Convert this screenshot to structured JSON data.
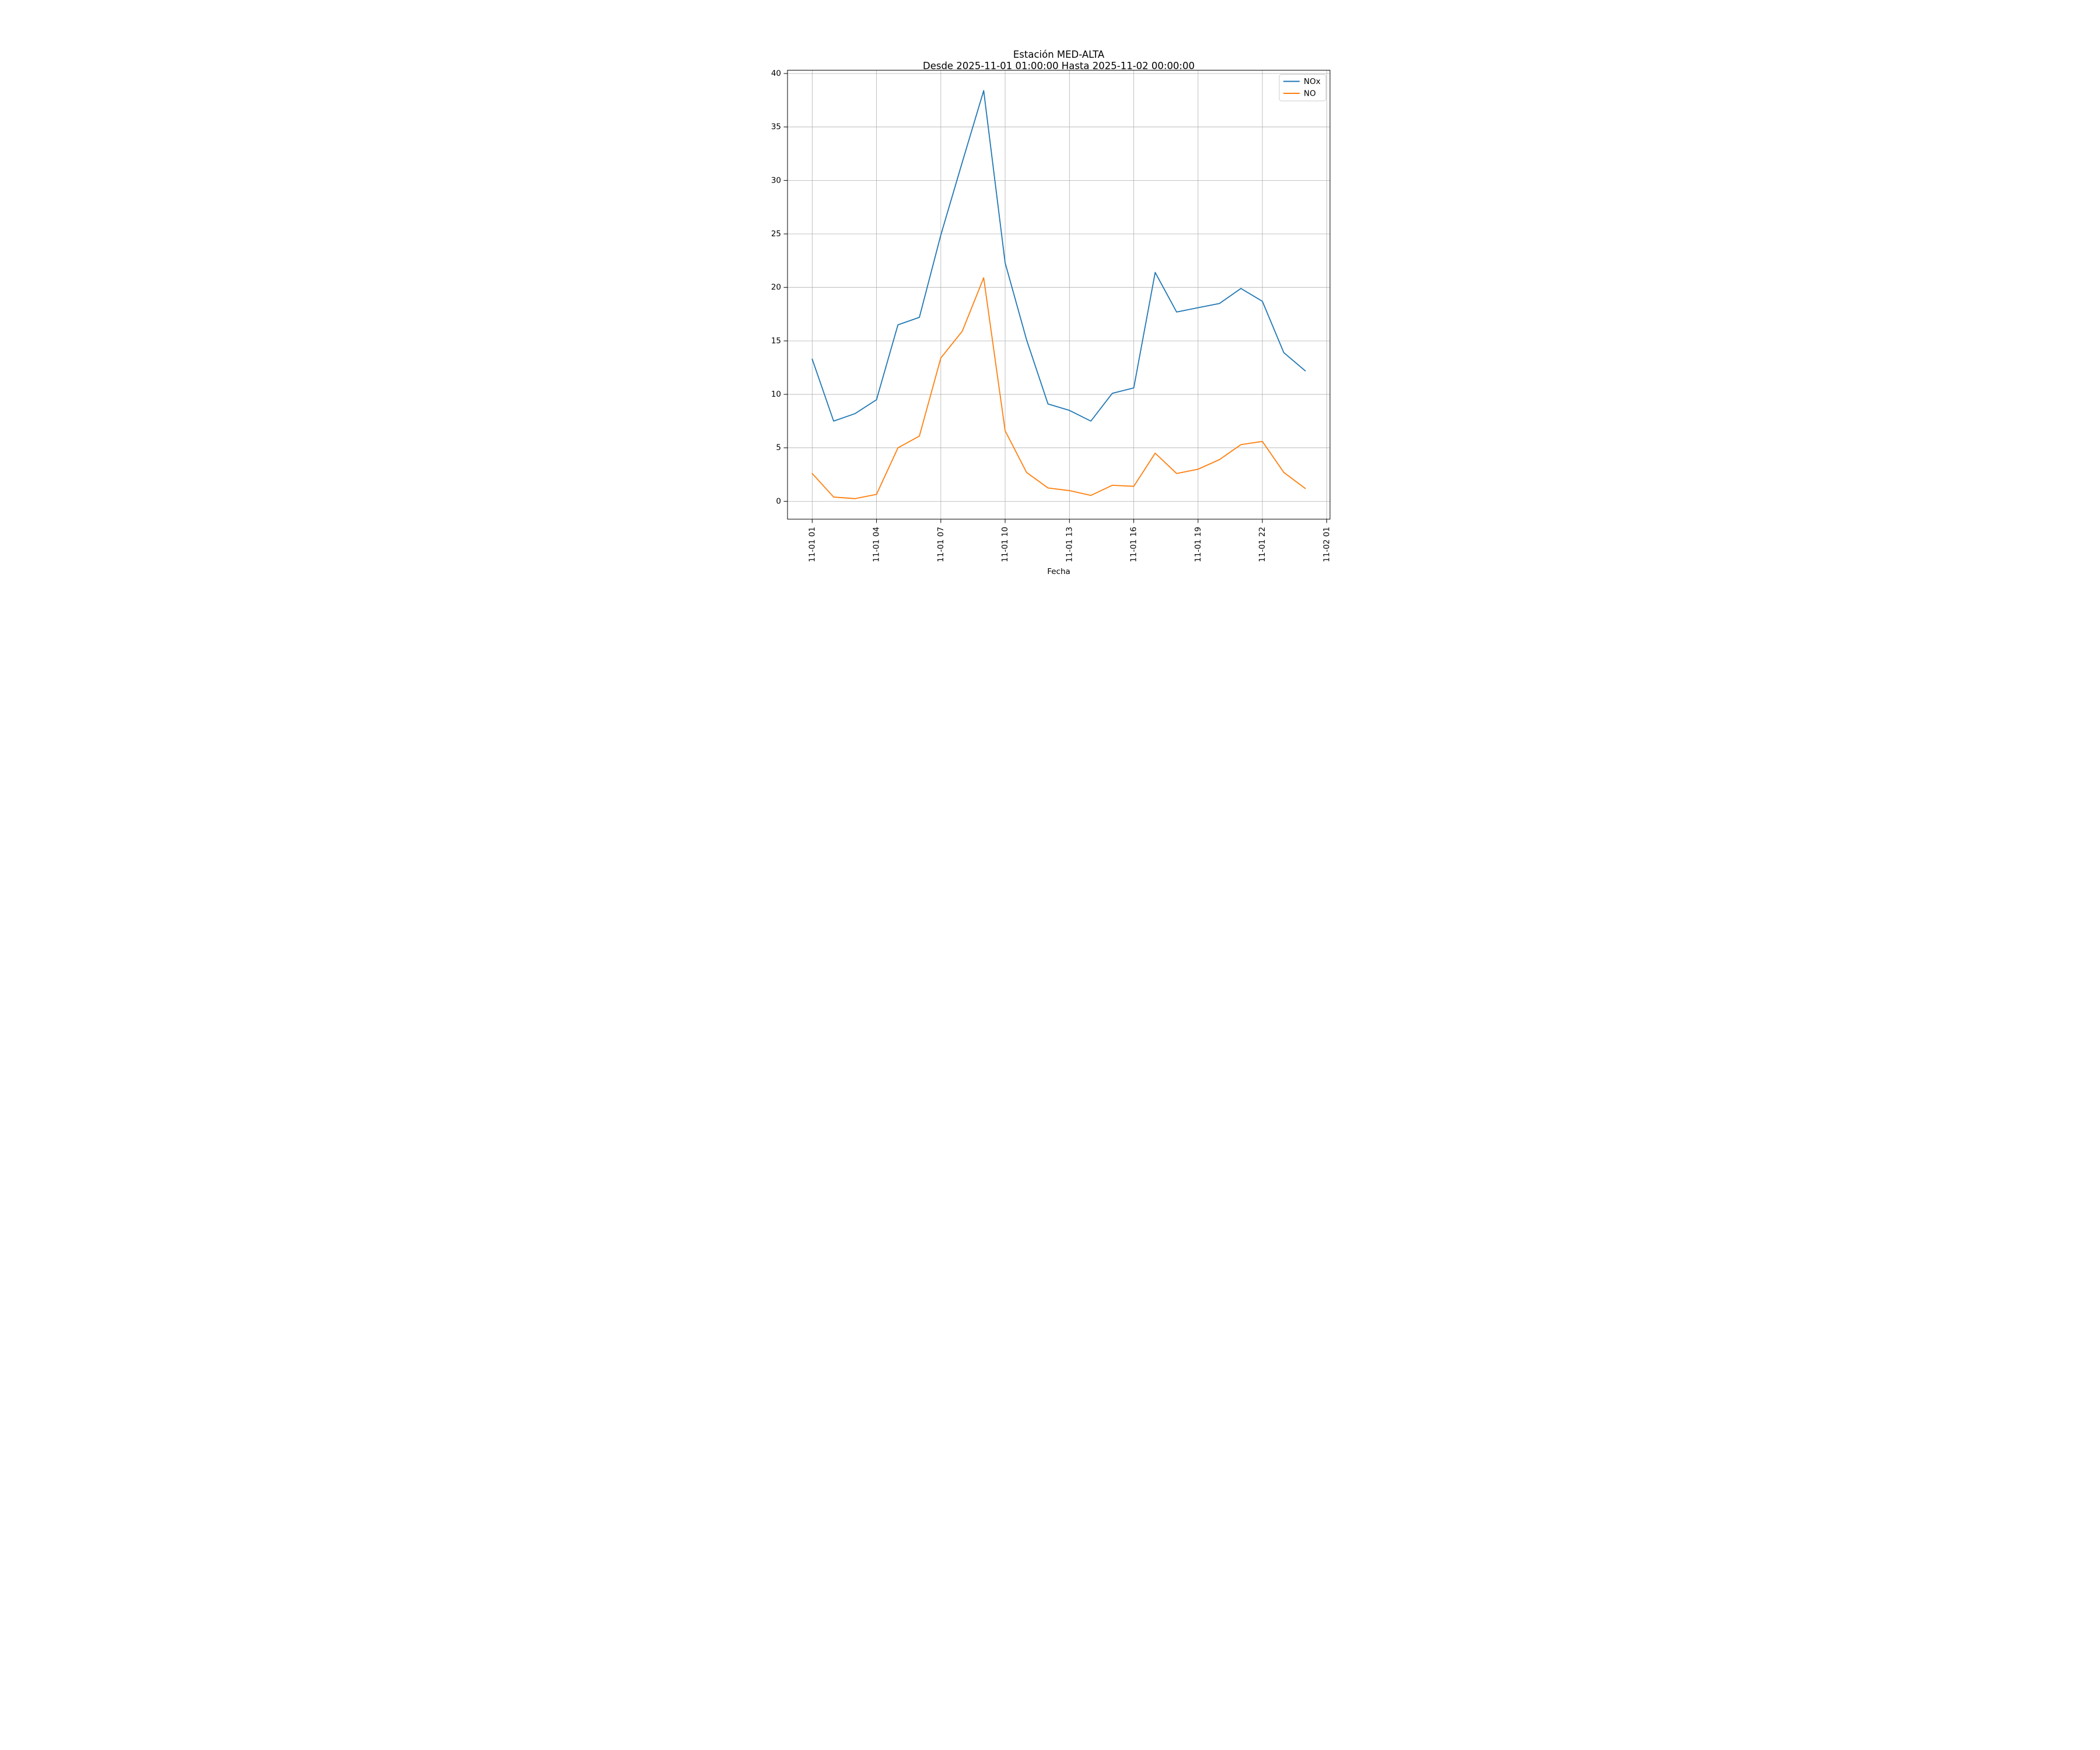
{
  "figure": {
    "background": "#ffffff",
    "grid_color": "#b0b0b0",
    "spine_color": "#000000",
    "text_color": "#000000"
  },
  "chart_data": {
    "type": "line",
    "title": "Estación MED-ALTA",
    "subtitle": "Desde 2025-11-01 01:00:00 Hasta 2025-11-02 00:00:00",
    "xlabel": "Fecha",
    "ylabel": "",
    "grid": true,
    "legend_position": "upper right",
    "ylim": [
      -1.67,
      40.31
    ],
    "xlim_hours": [
      -0.152,
      25.155
    ],
    "y_ticks": [
      0,
      5,
      10,
      15,
      20,
      25,
      30,
      35,
      40
    ],
    "y_tick_labels": [
      "0",
      "5",
      "10",
      "15",
      "20",
      "25",
      "30",
      "35",
      "40"
    ],
    "x_tick_hours": [
      1,
      4,
      7,
      10,
      13,
      16,
      19,
      22,
      25
    ],
    "x_tick_labels": [
      "11-01 01",
      "11-01 04",
      "11-01 07",
      "11-01 10",
      "11-01 13",
      "11-01 16",
      "11-01 19",
      "11-01 22",
      "11-02 01"
    ],
    "x_hours": [
      1,
      2,
      3,
      4,
      5,
      6,
      7,
      8,
      9,
      10,
      11,
      12,
      13,
      14,
      15,
      16,
      17,
      18,
      19,
      20,
      21,
      22,
      23,
      24
    ],
    "x_times": [
      "2025-11-01 01:00",
      "2025-11-01 02:00",
      "2025-11-01 03:00",
      "2025-11-01 04:00",
      "2025-11-01 05:00",
      "2025-11-01 06:00",
      "2025-11-01 07:00",
      "2025-11-01 08:00",
      "2025-11-01 09:00",
      "2025-11-01 10:00",
      "2025-11-01 11:00",
      "2025-11-01 12:00",
      "2025-11-01 13:00",
      "2025-11-01 14:00",
      "2025-11-01 15:00",
      "2025-11-01 16:00",
      "2025-11-01 17:00",
      "2025-11-01 18:00",
      "2025-11-01 19:00",
      "2025-11-01 20:00",
      "2025-11-01 21:00",
      "2025-11-01 22:00",
      "2025-11-01 23:00",
      "2025-11-02 00:00"
    ],
    "series": [
      {
        "name": "NOx",
        "color": "#1f77b4",
        "values": [
          13.3,
          7.5,
          8.2,
          9.5,
          16.5,
          17.2,
          24.9,
          31.7,
          38.4,
          22.3,
          15.1,
          9.1,
          8.5,
          7.5,
          10.1,
          10.6,
          21.4,
          17.7,
          18.1,
          18.5,
          19.9,
          18.7,
          13.9,
          12.2
        ]
      },
      {
        "name": "NO",
        "color": "#ff7f0e",
        "values": [
          2.6,
          0.4,
          0.25,
          0.65,
          5.0,
          6.1,
          13.4,
          15.9,
          20.9,
          6.6,
          2.7,
          1.25,
          1.0,
          0.55,
          1.5,
          1.4,
          4.5,
          2.6,
          3.0,
          3.9,
          5.3,
          5.6,
          2.7,
          1.2
        ]
      }
    ]
  }
}
